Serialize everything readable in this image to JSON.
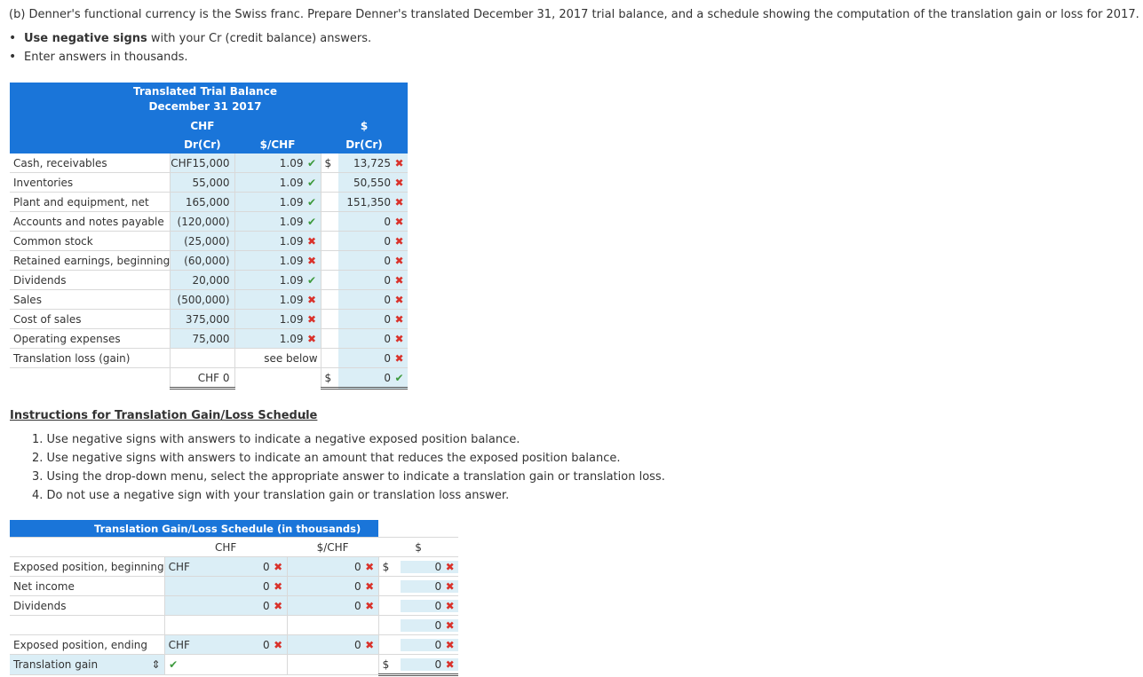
{
  "prompt": "(b) Denner's functional currency is the Swiss franc. Prepare Denner's translated December 31, 2017 trial balance, and a schedule showing the computation of the translation gain or loss for 2017.",
  "bullets": [
    {
      "bold": "Use negative signs",
      "rest": " with your Cr (credit balance) answers."
    },
    {
      "bold": "",
      "rest": "Enter answers in thousands."
    }
  ],
  "trial_balance": {
    "title1": "Translated Trial Balance",
    "title2": "December 31 2017",
    "col_chf_top": "CHF",
    "col_chf": "Dr(Cr)",
    "col_rate": "$/CHF",
    "col_usd_top": "$",
    "col_usd": "Dr(Cr)",
    "rows": [
      {
        "label": "Cash, receivables",
        "chf": "CHF15,000",
        "rate": "1.09",
        "rate_mark": "✔",
        "cur": "$",
        "usd": "13,725",
        "usd_mark": "✖"
      },
      {
        "label": "Inventories",
        "chf": "55,000",
        "rate": "1.09",
        "rate_mark": "✔",
        "cur": "",
        "usd": "50,550",
        "usd_mark": "✖"
      },
      {
        "label": "Plant and equipment, net",
        "chf": "165,000",
        "rate": "1.09",
        "rate_mark": "✔",
        "cur": "",
        "usd": "151,350",
        "usd_mark": "✖"
      },
      {
        "label": "Accounts and notes payable",
        "chf": "(120,000)",
        "rate": "1.09",
        "rate_mark": "✔",
        "cur": "",
        "usd": "0",
        "usd_mark": "✖"
      },
      {
        "label": "Common stock",
        "chf": "(25,000)",
        "rate": "1.09",
        "rate_mark": "✖",
        "cur": "",
        "usd": "0",
        "usd_mark": "✖"
      },
      {
        "label": "Retained earnings, beginning",
        "chf": "(60,000)",
        "rate": "1.09",
        "rate_mark": "✖",
        "cur": "",
        "usd": "0",
        "usd_mark": "✖"
      },
      {
        "label": "Dividends",
        "chf": "20,000",
        "rate": "1.09",
        "rate_mark": "✔",
        "cur": "",
        "usd": "0",
        "usd_mark": "✖"
      },
      {
        "label": "Sales",
        "chf": "(500,000)",
        "rate": "1.09",
        "rate_mark": "✖",
        "cur": "",
        "usd": "0",
        "usd_mark": "✖"
      },
      {
        "label": "Cost of sales",
        "chf": "375,000",
        "rate": "1.09",
        "rate_mark": "✖",
        "cur": "",
        "usd": "0",
        "usd_mark": "✖"
      },
      {
        "label": "Operating expenses",
        "chf": "75,000",
        "rate": "1.09",
        "rate_mark": "✖",
        "cur": "",
        "usd": "0",
        "usd_mark": "✖"
      },
      {
        "label": "Translation loss (gain)",
        "chf": "",
        "rate": "see below",
        "rate_mark": "",
        "cur": "",
        "usd": "0",
        "usd_mark": "✖"
      }
    ],
    "total": {
      "chf": "CHF 0",
      "cur": "$",
      "usd": "0",
      "usd_mark": "✔"
    }
  },
  "instructions": {
    "title": "Instructions for Translation Gain/Loss Schedule",
    "colon": ":",
    "items": [
      "1. Use negative signs with answers to indicate a negative exposed position balance.",
      "2. Use negative signs with answers to indicate an amount that reduces the exposed position balance.",
      "3. Using the drop-down menu, select the appropriate answer to indicate a translation gain or translation loss.",
      "4. Do not use a negative sign with your translation gain or translation loss answer."
    ]
  },
  "schedule": {
    "title": "Translation Gain/Loss Schedule (in thousands)",
    "col_chf": "CHF",
    "col_rate": "$/CHF",
    "col_usd": "$",
    "rows": [
      {
        "label": "Exposed position, beginning",
        "cur1": "CHF",
        "chf": "0",
        "chf_mark": "✖",
        "rate": "0",
        "rate_mark": "✖",
        "cur2": "$",
        "usd": "0",
        "usd_mark": "✖",
        "fill": true
      },
      {
        "label": "Net income",
        "cur1": "",
        "chf": "0",
        "chf_mark": "✖",
        "rate": "0",
        "rate_mark": "✖",
        "cur2": "",
        "usd": "0",
        "usd_mark": "✖",
        "fill": true
      },
      {
        "label": "Dividends",
        "cur1": "",
        "chf": "0",
        "chf_mark": "✖",
        "rate": "0",
        "rate_mark": "✖",
        "cur2": "",
        "usd": "0",
        "usd_mark": "✖",
        "fill": true
      },
      {
        "label": "",
        "cur1": "",
        "chf": "",
        "chf_mark": "",
        "rate": "",
        "rate_mark": "",
        "cur2": "",
        "usd": "0",
        "usd_mark": "✖",
        "fill": false
      },
      {
        "label": "Exposed position, ending",
        "cur1": "CHF",
        "chf": "0",
        "chf_mark": "✖",
        "rate": "0",
        "rate_mark": "✖",
        "cur2": "",
        "usd": "0",
        "usd_mark": "✖",
        "fill": true
      }
    ],
    "gain_row": {
      "select_value": "Translation gain",
      "select_arrow": "⇕",
      "select_mark": "✔",
      "cur2": "$",
      "usd": "0",
      "usd_mark": "✖"
    }
  }
}
